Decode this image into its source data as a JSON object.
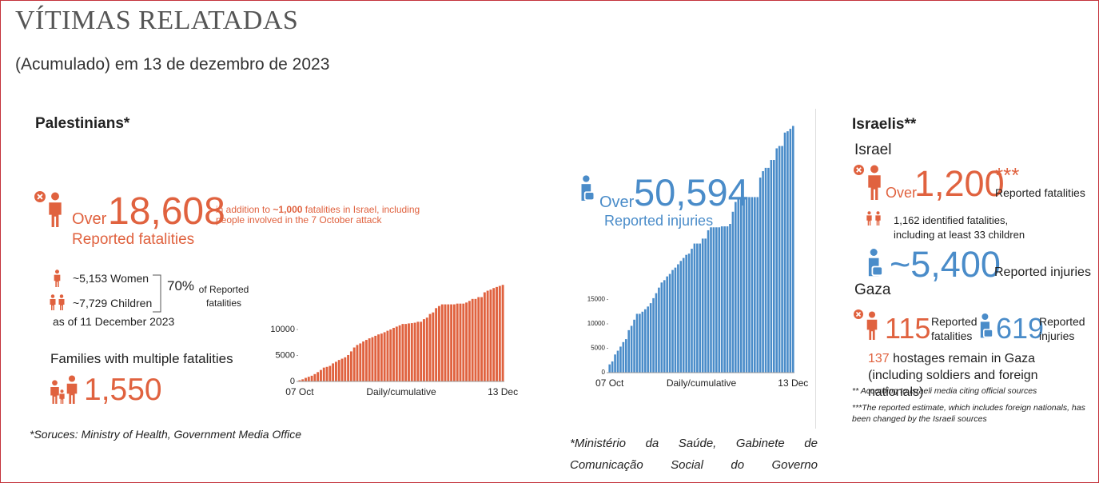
{
  "header": {
    "title": "VÍTIMAS RELATADAS",
    "subtitle": "(Acumulado) em 13 de dezembro de 2023"
  },
  "palestinians": {
    "heading": "Palestinians*",
    "over": "Over",
    "fatalities": "18,608",
    "note_prefix": "in addition to ",
    "note_bold": "~1,000",
    "note_suffix": " fatalities in Israel, including people involved in the 7 October attack",
    "fatalities_label": "Reported fatalities",
    "women_value": "~5,153",
    "women_label": "Women",
    "children_value": "~7,729",
    "children_label": "Children",
    "share": "70%",
    "share_label": "of Reported fatalities",
    "as_of": "as of 11 December 2023",
    "families_label": "Families with multiple fatalities",
    "families_value": "1,550",
    "source": "*Soruces: Ministry of Health, Government Media Office"
  },
  "injuries": {
    "over": "Over",
    "value": "50,594",
    "label": "Reported injuries",
    "source": "*Ministério da Saúde, Gabinete de Comunicação Social do Governo"
  },
  "israelis": {
    "heading": "Israelis**",
    "israel": "Israel",
    "over": "Over",
    "fatalities": "1,200",
    "stars": "***",
    "fatalities_label": "Reported fatalities",
    "identified": "1,162 identified fatalities, including at least 33 children",
    "injuries": "~5,400",
    "injuries_label": "Reported injuries",
    "gaza": "Gaza",
    "gaza_fatalities": "115",
    "gaza_fatalities_label": "Reported fatalities",
    "gaza_injuries": "619",
    "gaza_injuries_label": "Reported injuries",
    "hostages_value": "137",
    "hostages_text": " hostages remain in Gaza (including soldiers and foreign nationals)",
    "note1": "** According to Israeli media citing official sources",
    "note2": "***The reported estimate, which includes foreign nationals, has been changed by the Israeli sources"
  },
  "chart_data": [
    {
      "type": "bar",
      "xlabel": "Daily/cumulative",
      "color": "#e0623f",
      "ylim": [
        0,
        18800
      ],
      "yticks": [
        0,
        5000,
        10000
      ],
      "categories": [
        "07 Oct",
        null,
        null,
        null,
        null,
        null,
        null,
        null,
        null,
        null,
        null,
        null,
        null,
        null,
        null,
        null,
        null,
        null,
        null,
        null,
        null,
        null,
        null,
        null,
        null,
        null,
        null,
        null,
        null,
        null,
        null,
        null,
        null,
        null,
        null,
        null,
        null,
        null,
        null,
        null,
        null,
        null,
        null,
        null,
        null,
        null,
        null,
        null,
        null,
        null,
        null,
        null,
        null,
        null,
        null,
        null,
        null,
        null,
        null,
        null,
        null,
        null,
        null,
        null,
        null,
        null,
        null,
        "13 Dec"
      ],
      "values": [
        232,
        413,
        687,
        900,
        1100,
        1417,
        1799,
        2215,
        2670,
        2808,
        3000,
        3478,
        3785,
        4137,
        4385,
        4651,
        5087,
        5791,
        6546,
        7028,
        7326,
        7703,
        8005,
        8306,
        8525,
        8796,
        9061,
        9227,
        9488,
        9770,
        10022,
        10328,
        10569,
        10812,
        11078,
        11078,
        11180,
        11240,
        11320,
        11500,
        11500,
        12000,
        12300,
        13000,
        13300,
        14128,
        14532,
        14854,
        14854,
        14854,
        14854,
        14854,
        15000,
        15000,
        15000,
        15207,
        15523,
        15899,
        15899,
        16248,
        16248,
        17177,
        17487,
        17700,
        17997,
        18205,
        18412,
        18608
      ]
    },
    {
      "type": "bar",
      "xlabel": "Daily/cumulative",
      "color": "#4a8cc9",
      "ylim": [
        0,
        51000
      ],
      "yticks": [
        0,
        5000,
        10000,
        15000
      ],
      "categories": [
        "07 Oct",
        null,
        null,
        null,
        null,
        null,
        null,
        null,
        null,
        null,
        null,
        null,
        null,
        null,
        null,
        null,
        null,
        null,
        null,
        null,
        null,
        null,
        null,
        null,
        null,
        null,
        null,
        null,
        null,
        null,
        null,
        null,
        null,
        null,
        null,
        null,
        null,
        null,
        null,
        null,
        null,
        null,
        null,
        null,
        null,
        null,
        null,
        null,
        null,
        null,
        null,
        null,
        null,
        null,
        null,
        null,
        null,
        null,
        null,
        null,
        null,
        null,
        null,
        null,
        null,
        null,
        null,
        "13 Dec"
      ],
      "values": [
        1697,
        2300,
        3726,
        4500,
        5339,
        6268,
        6868,
        8714,
        9600,
        10859,
        12065,
        12065,
        12500,
        13000,
        13561,
        14245,
        15273,
        16297,
        17439,
        18484,
        18967,
        19734,
        20242,
        21048,
        21543,
        22219,
        22911,
        23516,
        24158,
        24408,
        25408,
        26475,
        26475,
        26475,
        27490,
        27490,
        29200,
        29800,
        29800,
        29800,
        29800,
        30000,
        30000,
        30000,
        30500,
        33000,
        35000,
        36000,
        36000,
        36000,
        36000,
        36000,
        36000,
        36000,
        36000,
        40000,
        41316,
        42000,
        42000,
        43616,
        43616,
        46000,
        46480,
        46480,
        49229,
        49500,
        50000,
        50594
      ]
    }
  ]
}
